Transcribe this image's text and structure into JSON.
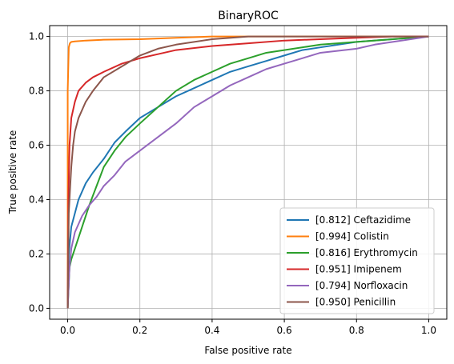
{
  "chart_data": {
    "type": "line",
    "title": "BinaryROC",
    "xlabel": "False positive rate",
    "ylabel": "True positive rate",
    "xlim": [
      -0.05,
      1.05
    ],
    "ylim": [
      -0.04,
      1.04
    ],
    "xticks": [
      "0.0",
      "0.2",
      "0.4",
      "0.6",
      "0.8",
      "1.0"
    ],
    "yticks": [
      "0.0",
      "0.2",
      "0.4",
      "0.6",
      "0.8",
      "1.0"
    ],
    "grid": true,
    "legend_position": "lower-right",
    "series": [
      {
        "name": "[0.812] Ceftazidime",
        "color": "#1f77b4",
        "x": [
          0,
          0.003,
          0.01,
          0.02,
          0.03,
          0.05,
          0.07,
          0.1,
          0.13,
          0.16,
          0.2,
          0.25,
          0.3,
          0.35,
          0.4,
          0.45,
          0.5,
          0.55,
          0.6,
          0.65,
          0.7,
          0.8,
          0.9,
          1.0
        ],
        "y": [
          0,
          0.2,
          0.3,
          0.35,
          0.4,
          0.46,
          0.5,
          0.55,
          0.61,
          0.65,
          0.7,
          0.74,
          0.78,
          0.81,
          0.84,
          0.87,
          0.89,
          0.91,
          0.93,
          0.95,
          0.96,
          0.98,
          0.99,
          1.0
        ]
      },
      {
        "name": "[0.994] Colistin",
        "color": "#ff7f0e",
        "x": [
          0,
          0.0,
          0.003,
          0.006,
          0.01,
          0.02,
          0.05,
          0.1,
          0.2,
          0.3,
          0.4,
          0.6,
          0.8,
          1.0
        ],
        "y": [
          0,
          0.8,
          0.96,
          0.975,
          0.98,
          0.982,
          0.985,
          0.988,
          0.99,
          0.995,
          1.0,
          1.0,
          1.0,
          1.0
        ]
      },
      {
        "name": "[0.816] Erythromycin",
        "color": "#2ca02c",
        "x": [
          0,
          0.005,
          0.01,
          0.02,
          0.04,
          0.06,
          0.08,
          0.1,
          0.13,
          0.16,
          0.2,
          0.25,
          0.3,
          0.35,
          0.4,
          0.45,
          0.5,
          0.55,
          0.6,
          0.7,
          0.8,
          0.9,
          1.0
        ],
        "y": [
          0,
          0.15,
          0.18,
          0.22,
          0.3,
          0.38,
          0.45,
          0.52,
          0.58,
          0.63,
          0.68,
          0.74,
          0.8,
          0.84,
          0.87,
          0.9,
          0.92,
          0.94,
          0.95,
          0.97,
          0.98,
          0.99,
          1.0
        ]
      },
      {
        "name": "[0.951] Imipenem",
        "color": "#d62728",
        "x": [
          0,
          0.002,
          0.005,
          0.01,
          0.02,
          0.03,
          0.05,
          0.07,
          0.1,
          0.15,
          0.2,
          0.25,
          0.3,
          0.4,
          0.5,
          0.6,
          0.7,
          0.8,
          0.9,
          1.0
        ],
        "y": [
          0,
          0.4,
          0.6,
          0.7,
          0.76,
          0.8,
          0.83,
          0.85,
          0.87,
          0.9,
          0.92,
          0.935,
          0.95,
          0.965,
          0.975,
          0.985,
          0.99,
          0.995,
          1.0,
          1.0
        ]
      },
      {
        "name": "[0.794] Norfloxacin",
        "color": "#9467bd",
        "x": [
          0,
          0.005,
          0.01,
          0.02,
          0.04,
          0.06,
          0.08,
          0.1,
          0.13,
          0.16,
          0.2,
          0.25,
          0.3,
          0.35,
          0.4,
          0.45,
          0.5,
          0.55,
          0.6,
          0.65,
          0.7,
          0.8,
          0.85,
          0.9,
          0.95,
          1.0
        ],
        "y": [
          0,
          0.15,
          0.22,
          0.28,
          0.34,
          0.38,
          0.41,
          0.45,
          0.49,
          0.54,
          0.58,
          0.63,
          0.68,
          0.74,
          0.78,
          0.82,
          0.85,
          0.88,
          0.9,
          0.92,
          0.94,
          0.955,
          0.97,
          0.98,
          0.99,
          1.0
        ]
      },
      {
        "name": "[0.950] Penicillin",
        "color": "#8c564b",
        "x": [
          0,
          0.003,
          0.007,
          0.01,
          0.015,
          0.02,
          0.03,
          0.05,
          0.07,
          0.1,
          0.15,
          0.2,
          0.25,
          0.3,
          0.4,
          0.5,
          0.6,
          0.7,
          0.8,
          1.0
        ],
        "y": [
          0,
          0.35,
          0.45,
          0.52,
          0.6,
          0.65,
          0.7,
          0.76,
          0.8,
          0.85,
          0.89,
          0.93,
          0.955,
          0.97,
          0.99,
          1.0,
          1.0,
          1.0,
          1.0,
          1.0
        ]
      }
    ]
  }
}
